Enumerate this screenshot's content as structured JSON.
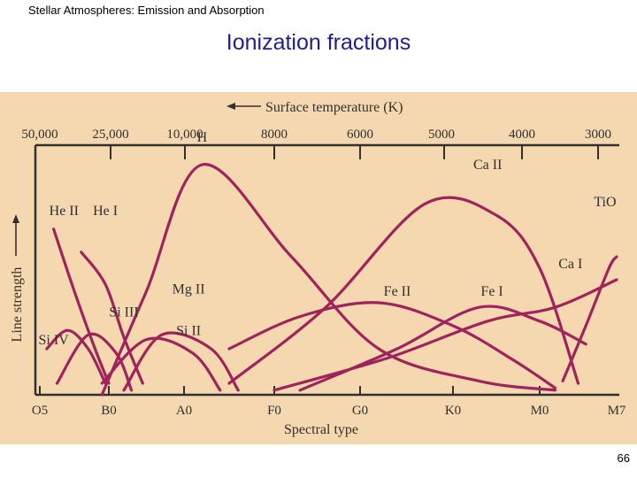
{
  "slide": {
    "header": "Stellar Atmospheres:  Emission and Absorption",
    "title": "Ionization fractions",
    "page_number": "66"
  },
  "colors": {
    "background": "#f5d7b0",
    "curves": "#a0245c",
    "axis": "#303030",
    "title": "#1f1f8f"
  },
  "chart_data": {
    "type": "line",
    "title": "",
    "xlabel": "Spectral type",
    "ylabel": "Line strength",
    "top_axis_label": "Surface temperature (K)",
    "top_ticks": [
      "50,000",
      "25,000",
      "10,000",
      "8000",
      "6000",
      "5000",
      "4000",
      "3000"
    ],
    "bottom_ticks": [
      "O5",
      "B0",
      "A0",
      "F0",
      "G0",
      "K0",
      "M0",
      "M7"
    ],
    "grid": false,
    "series": [
      {
        "name": "H",
        "points": [
          [
            0.9,
            0.0
          ],
          [
            1.5,
            0.45
          ],
          [
            2.2,
            1.0
          ],
          [
            3.2,
            0.6
          ],
          [
            4.2,
            0.2
          ],
          [
            5.3,
            0.06
          ],
          [
            6.2,
            0.02
          ]
        ]
      },
      {
        "name": "He II",
        "points": [
          [
            0.2,
            0.72
          ],
          [
            0.5,
            0.45
          ],
          [
            0.8,
            0.2
          ],
          [
            1.0,
            0.05
          ]
        ]
      },
      {
        "name": "He I",
        "points": [
          [
            0.6,
            0.62
          ],
          [
            0.95,
            0.48
          ],
          [
            1.2,
            0.25
          ],
          [
            1.45,
            0.05
          ]
        ]
      },
      {
        "name": "Si IV",
        "points": [
          [
            0.1,
            0.2
          ],
          [
            0.4,
            0.28
          ],
          [
            0.7,
            0.2
          ],
          [
            0.95,
            0.05
          ]
        ]
      },
      {
        "name": "Si III",
        "points": [
          [
            0.25,
            0.05
          ],
          [
            0.7,
            0.26
          ],
          [
            1.1,
            0.18
          ],
          [
            1.3,
            0.02
          ]
        ]
      },
      {
        "name": "Si II",
        "points": [
          [
            0.9,
            0.05
          ],
          [
            1.5,
            0.24
          ],
          [
            2.1,
            0.18
          ],
          [
            2.4,
            0.02
          ]
        ]
      },
      {
        "name": "Mg II",
        "points": [
          [
            1.2,
            0.02
          ],
          [
            1.7,
            0.26
          ],
          [
            2.3,
            0.2
          ],
          [
            2.6,
            0.02
          ]
        ]
      },
      {
        "name": "Ca II",
        "points": [
          [
            2.5,
            0.05
          ],
          [
            3.6,
            0.38
          ],
          [
            4.7,
            0.83
          ],
          [
            5.5,
            0.78
          ],
          [
            6.0,
            0.55
          ],
          [
            6.5,
            0.05
          ]
        ]
      },
      {
        "name": "Fe II",
        "points": [
          [
            2.5,
            0.2
          ],
          [
            3.3,
            0.34
          ],
          [
            4.2,
            0.4
          ],
          [
            5.0,
            0.3
          ],
          [
            5.7,
            0.15
          ],
          [
            6.2,
            0.03
          ]
        ]
      },
      {
        "name": "Fe I",
        "points": [
          [
            3.3,
            0.02
          ],
          [
            4.4,
            0.2
          ],
          [
            5.3,
            0.38
          ],
          [
            6.0,
            0.32
          ],
          [
            6.6,
            0.22
          ]
        ]
      },
      {
        "name": "Ca I",
        "points": [
          [
            3.0,
            0.02
          ],
          [
            4.3,
            0.16
          ],
          [
            5.4,
            0.32
          ],
          [
            6.2,
            0.38
          ],
          [
            7.0,
            0.5
          ]
        ]
      },
      {
        "name": "TiO",
        "points": [
          [
            6.3,
            0.06
          ],
          [
            6.6,
            0.3
          ],
          [
            6.9,
            0.55
          ],
          [
            7.0,
            0.6
          ]
        ]
      }
    ],
    "labels": [
      {
        "text": "H",
        "x": 2.2,
        "y": 1.1
      },
      {
        "text": "He II",
        "x": 0.35,
        "y": 0.78
      },
      {
        "text": "He I",
        "x": 0.95,
        "y": 0.78
      },
      {
        "text": "Si IV",
        "x": 0.2,
        "y": 0.22
      },
      {
        "text": "Si III",
        "x": 1.2,
        "y": 0.34
      },
      {
        "text": "Si II",
        "x": 2.05,
        "y": 0.26
      },
      {
        "text": "Mg II",
        "x": 2.05,
        "y": 0.44
      },
      {
        "text": "Ca II",
        "x": 5.4,
        "y": 0.98
      },
      {
        "text": "Fe II",
        "x": 4.4,
        "y": 0.43
      },
      {
        "text": "Fe I",
        "x": 5.45,
        "y": 0.43
      },
      {
        "text": "Ca I",
        "x": 6.4,
        "y": 0.55
      },
      {
        "text": "TiO",
        "x": 6.85,
        "y": 0.82
      }
    ]
  }
}
